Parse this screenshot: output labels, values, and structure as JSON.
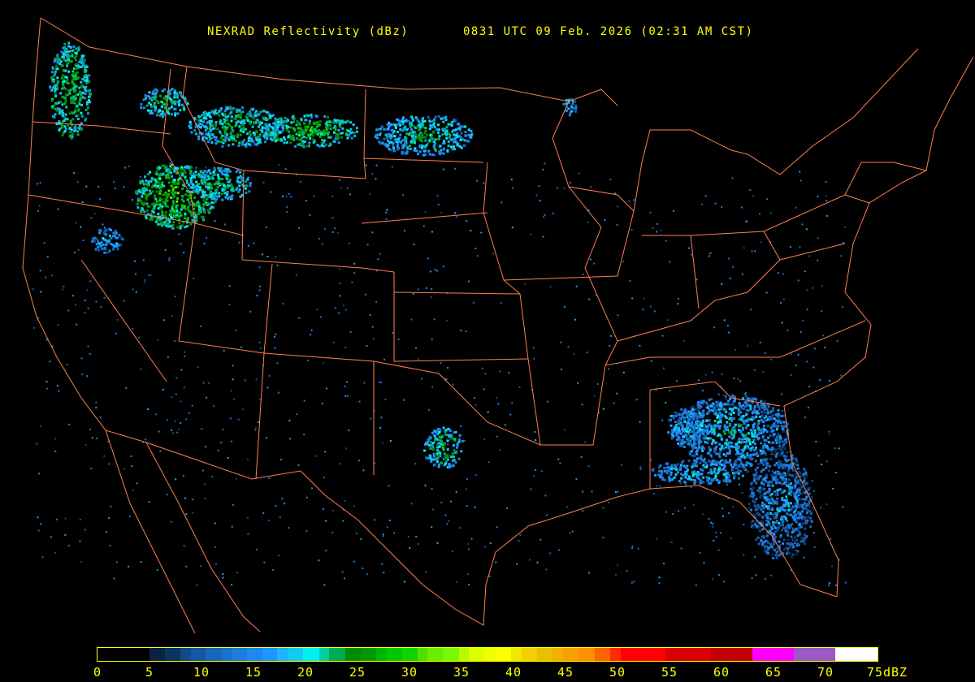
{
  "header": {
    "product": "NEXRAD Reflectivity (dBz)",
    "timestamp": "0831 UTC 09 Feb. 2026 (02:31 AM CST)"
  },
  "colors": {
    "background": "#000000",
    "borders": "#ff7f50",
    "text": "#ffff00"
  },
  "legend": {
    "unit": "dBZ",
    "labels": [
      "0",
      "5",
      "10",
      "15",
      "20",
      "25",
      "30",
      "35",
      "40",
      "45",
      "50",
      "55",
      "60",
      "65",
      "70",
      "75dBZ"
    ],
    "scale": [
      {
        "from": 0,
        "to": 5,
        "color": "#000000"
      },
      {
        "from": 5,
        "to": 6.5,
        "color": "#0a2342"
      },
      {
        "from": 6.5,
        "to": 8,
        "color": "#0c3462"
      },
      {
        "from": 8,
        "to": 9,
        "color": "#104a8c"
      },
      {
        "from": 9,
        "to": 10.4,
        "color": "#1558a2"
      },
      {
        "from": 10.4,
        "to": 11.9,
        "color": "#1866bb"
      },
      {
        "from": 11.9,
        "to": 12.9,
        "color": "#1a70cc"
      },
      {
        "from": 12.9,
        "to": 14.4,
        "color": "#1c7ce0"
      },
      {
        "from": 14.4,
        "to": 15.9,
        "color": "#1e88f0"
      },
      {
        "from": 15.9,
        "to": 17.3,
        "color": "#1e96ff"
      },
      {
        "from": 17.3,
        "to": 18.4,
        "color": "#1eb4ff"
      },
      {
        "from": 18.4,
        "to": 19.8,
        "color": "#10ccf0"
      },
      {
        "from": 19.8,
        "to": 21.3,
        "color": "#00f0f0"
      },
      {
        "from": 21.3,
        "to": 22.3,
        "color": "#00d0a0"
      },
      {
        "from": 22.3,
        "to": 23.8,
        "color": "#00aa50"
      },
      {
        "from": 23.8,
        "to": 25.3,
        "color": "#008c00"
      },
      {
        "from": 25.3,
        "to": 26.8,
        "color": "#009a00"
      },
      {
        "from": 26.8,
        "to": 27.8,
        "color": "#00b400"
      },
      {
        "from": 27.8,
        "to": 29.3,
        "color": "#00c800"
      },
      {
        "from": 29.3,
        "to": 30.8,
        "color": "#10d400"
      },
      {
        "from": 30.8,
        "to": 31.7,
        "color": "#50e000"
      },
      {
        "from": 31.7,
        "to": 33.2,
        "color": "#64f000"
      },
      {
        "from": 33.2,
        "to": 34.8,
        "color": "#78fa00"
      },
      {
        "from": 34.8,
        "to": 35.7,
        "color": "#b4fa00"
      },
      {
        "from": 35.7,
        "to": 37.2,
        "color": "#dcff00"
      },
      {
        "from": 37.2,
        "to": 38.4,
        "color": "#f0ff00"
      },
      {
        "from": 38.4,
        "to": 39.8,
        "color": "#ffff00"
      },
      {
        "from": 39.8,
        "to": 40.8,
        "color": "#f0e800"
      },
      {
        "from": 40.8,
        "to": 42.3,
        "color": "#f0d000"
      },
      {
        "from": 42.3,
        "to": 43.8,
        "color": "#e8c000"
      },
      {
        "from": 43.8,
        "to": 44.8,
        "color": "#f0b000"
      },
      {
        "from": 44.8,
        "to": 46.3,
        "color": "#f8a000"
      },
      {
        "from": 46.3,
        "to": 47.8,
        "color": "#ff9000"
      },
      {
        "from": 47.8,
        "to": 49.3,
        "color": "#ff6400"
      },
      {
        "from": 49.3,
        "to": 50.3,
        "color": "#ff2800"
      },
      {
        "from": 50.3,
        "to": 54.6,
        "color": "#ff0000"
      },
      {
        "from": 54.6,
        "to": 59,
        "color": "#d80000"
      },
      {
        "from": 59,
        "to": 63,
        "color": "#c00000"
      },
      {
        "from": 63,
        "to": 67,
        "color": "#ff00ff"
      },
      {
        "from": 67,
        "to": 71,
        "color": "#9b59c8"
      },
      {
        "from": 71,
        "to": 75,
        "color": "#ffffff"
      }
    ]
  }
}
